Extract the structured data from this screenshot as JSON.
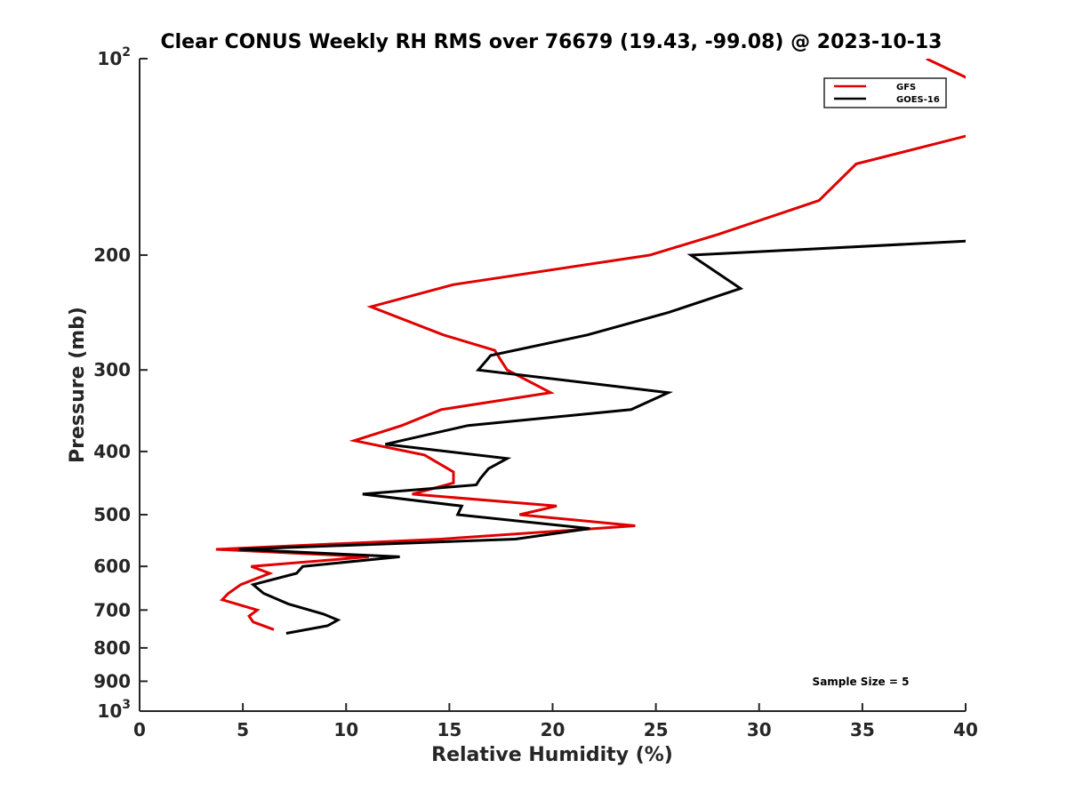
{
  "chart_data": {
    "type": "line",
    "title": "Clear CONUS Weekly RH RMS over 76679 (19.43, -99.08) @ 2023-10-13",
    "xlabel": "Relative Humidity (%)",
    "ylabel": "Pressure (mb)",
    "xlim": [
      0,
      40
    ],
    "ylim": [
      100,
      1000
    ],
    "y_scale": "log",
    "y_direction": "reverse",
    "x_ticks": [
      "0",
      "5",
      "10",
      "15",
      "20",
      "25",
      "30",
      "35",
      "40"
    ],
    "x_tick_values": [
      0,
      5,
      10,
      15,
      20,
      25,
      30,
      35,
      40
    ],
    "y_ticks": [
      {
        "value": 100,
        "base": "10",
        "exp": "2"
      },
      {
        "value": 200,
        "label": "200"
      },
      {
        "value": 300,
        "label": "300"
      },
      {
        "value": 400,
        "label": "400"
      },
      {
        "value": 500,
        "label": "500"
      },
      {
        "value": 600,
        "label": "600"
      },
      {
        "value": 700,
        "label": "700"
      },
      {
        "value": 800,
        "label": "800"
      },
      {
        "value": 900,
        "label": "900"
      },
      {
        "value": 1000,
        "base": "10",
        "exp": "3"
      }
    ],
    "grid": false,
    "legend_position": "top-right",
    "annotation": "Sample Size = 5",
    "series": [
      {
        "name": "GFS",
        "color": "#e00000",
        "points": [
          [
            38.1,
            100
          ],
          [
            40.6,
            109
          ],
          [
            40.6,
            130
          ],
          [
            34.7,
            145
          ],
          [
            32.9,
            165
          ],
          [
            28,
            186
          ],
          [
            24.7,
            200
          ],
          [
            15.2,
            222
          ],
          [
            11.2,
            240
          ],
          [
            14.7,
            265
          ],
          [
            17.2,
            280
          ],
          [
            17.5,
            290
          ],
          [
            17.8,
            300
          ],
          [
            19.9,
            325
          ],
          [
            14.6,
            345
          ],
          [
            12.7,
            365
          ],
          [
            10.4,
            385
          ],
          [
            13.8,
            405
          ],
          [
            15.2,
            430
          ],
          [
            15.2,
            447
          ],
          [
            13.2,
            465
          ],
          [
            20.2,
            485
          ],
          [
            18.4,
            500
          ],
          [
            24,
            520
          ],
          [
            14.6,
            545
          ],
          [
            3.7,
            565
          ],
          [
            11.1,
            580
          ],
          [
            5.4,
            600
          ],
          [
            6.3,
            615
          ],
          [
            4.9,
            640
          ],
          [
            4.3,
            660
          ],
          [
            4,
            675
          ],
          [
            5.7,
            700
          ],
          [
            5.3,
            715
          ],
          [
            5.5,
            730
          ],
          [
            6.5,
            750
          ]
        ]
      },
      {
        "name": "GOES-16",
        "color": "#000000",
        "points": [
          [
            40.6,
            190
          ],
          [
            26.7,
            200
          ],
          [
            29.1,
            225
          ],
          [
            25.6,
            245
          ],
          [
            21.7,
            265
          ],
          [
            17,
            285
          ],
          [
            16.8,
            290
          ],
          [
            16.4,
            300
          ],
          [
            25.6,
            325
          ],
          [
            23.8,
            345
          ],
          [
            15.9,
            365
          ],
          [
            11.9,
            390
          ],
          [
            17.8,
            410
          ],
          [
            16.9,
            425
          ],
          [
            16.5,
            440
          ],
          [
            16.3,
            450
          ],
          [
            10.8,
            465
          ],
          [
            15.6,
            485
          ],
          [
            15.4,
            500
          ],
          [
            21.8,
            525
          ],
          [
            18.2,
            545
          ],
          [
            4.8,
            565
          ],
          [
            12.6,
            580
          ],
          [
            7.9,
            600
          ],
          [
            7.6,
            615
          ],
          [
            5.5,
            640
          ],
          [
            6,
            660
          ],
          [
            7.2,
            685
          ],
          [
            8.9,
            710
          ],
          [
            9.6,
            725
          ],
          [
            9.1,
            740
          ],
          [
            7.1,
            760
          ]
        ]
      }
    ]
  }
}
